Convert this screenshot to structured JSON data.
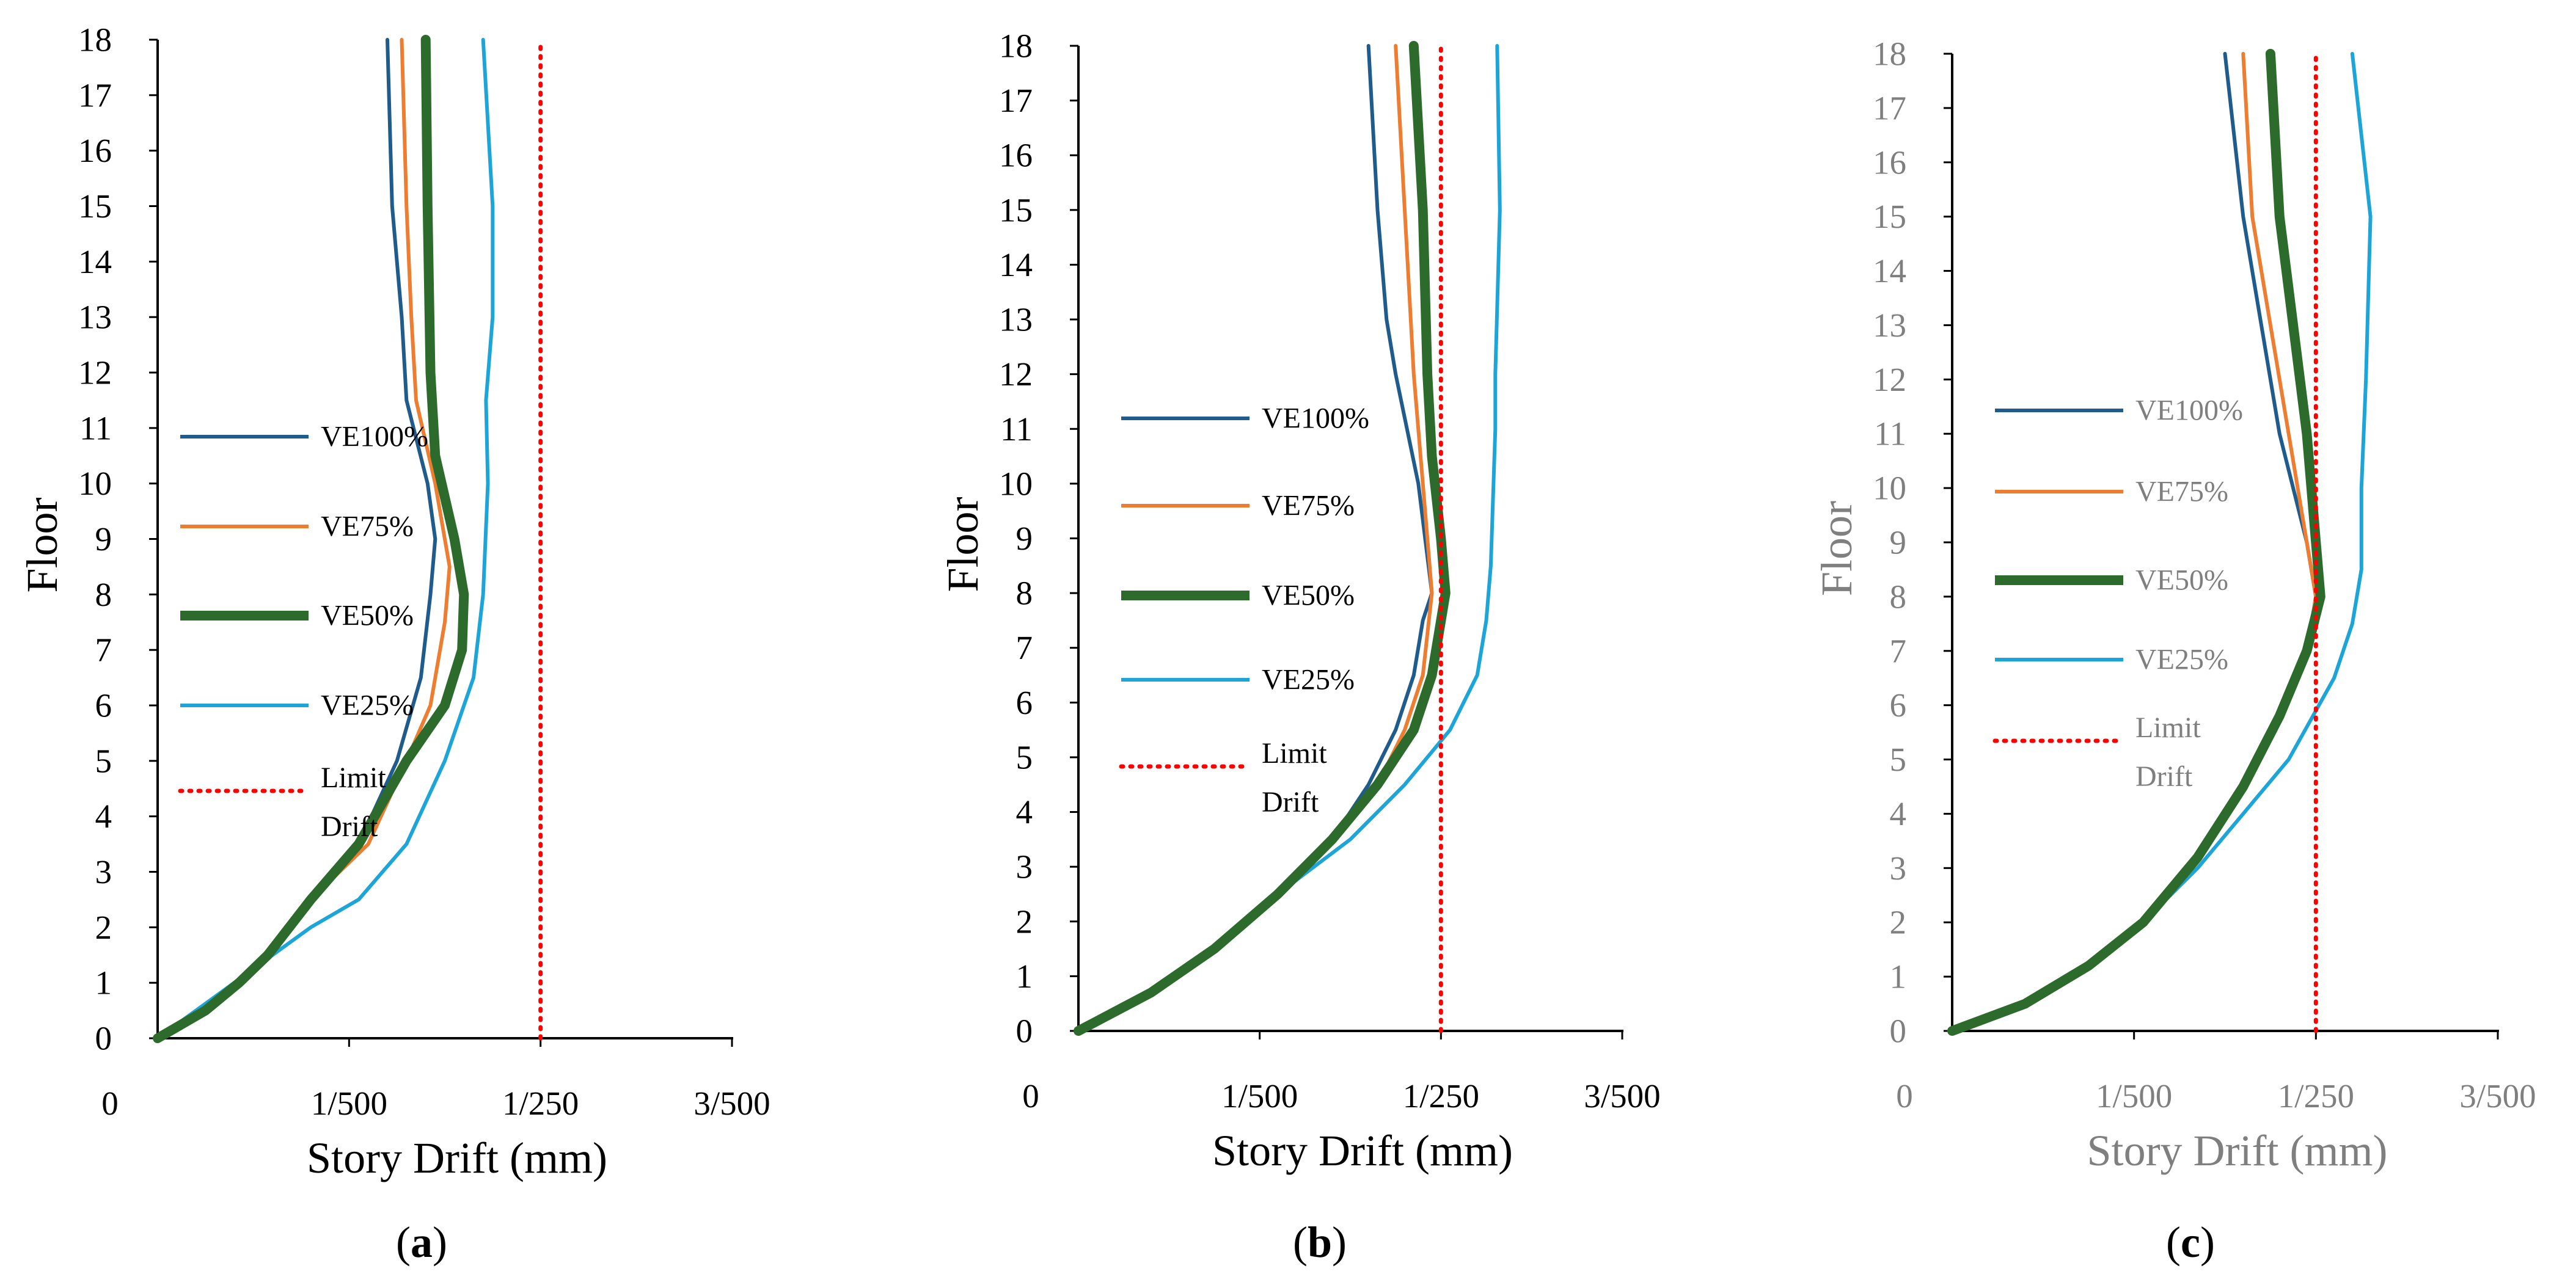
{
  "chart_data": [
    {
      "type": "line",
      "panel": "a",
      "caption": "a",
      "xlabel": "Story Drift (mm)",
      "ylabel": "Floor",
      "x_origin_label": "0",
      "xlim": [
        0,
        0.006
      ],
      "x_ticks": [
        0.002,
        0.004,
        0.006
      ],
      "x_tick_labels": [
        "1/500",
        "1/250",
        "3/500"
      ],
      "ylim": [
        0,
        18
      ],
      "y_ticks": [
        0,
        1,
        2,
        3,
        4,
        5,
        6,
        7,
        8,
        9,
        10,
        11,
        12,
        13,
        14,
        15,
        16,
        17,
        18
      ],
      "y_tick_labels": [
        "0",
        "1",
        "2",
        "3",
        "4",
        "5",
        "6",
        "7",
        "8",
        "9",
        "10",
        "11",
        "12",
        "13",
        "14",
        "15",
        "16",
        "17",
        "18"
      ],
      "legend_position": "left",
      "series": [
        {
          "name": "VE100%",
          "color": "#1f5c8c",
          "width": 6,
          "x": [
            0,
            0.0005,
            0.00085,
            0.00115,
            0.0016,
            0.0021,
            0.0025,
            0.00275,
            0.00285,
            0.0029,
            0.00282,
            0.0026,
            0.00255,
            0.00245,
            0.0024
          ],
          "y": [
            0,
            0.5,
            1,
            1.5,
            2.5,
            3.5,
            5,
            6.5,
            8,
            9,
            10,
            11.5,
            13,
            15,
            18
          ]
        },
        {
          "name": "VE75%",
          "color": "#ed7d31",
          "width": 6,
          "x": [
            0,
            0.0005,
            0.00085,
            0.00115,
            0.0016,
            0.0022,
            0.0026,
            0.00285,
            0.003,
            0.00305,
            0.0029,
            0.0027,
            0.00265,
            0.0026,
            0.00255
          ],
          "y": [
            0,
            0.5,
            1,
            1.5,
            2.5,
            3.5,
            5,
            6,
            7.5,
            8.5,
            10,
            11.5,
            13,
            15,
            18
          ]
        },
        {
          "name": "VE50%",
          "color": "#2d6b2d",
          "width": 16,
          "x": [
            0,
            0.0005,
            0.00085,
            0.00115,
            0.0016,
            0.0021,
            0.0026,
            0.003,
            0.00318,
            0.0032,
            0.0031,
            0.0029,
            0.00285,
            0.00282,
            0.0028
          ],
          "y": [
            0,
            0.5,
            1,
            1.5,
            2.5,
            3.5,
            5,
            6,
            7,
            8,
            9,
            10.5,
            12,
            15,
            18
          ]
        },
        {
          "name": "VE25%",
          "color": "#1ea5d8",
          "width": 6,
          "x": [
            0,
            0.0004,
            0.0008,
            0.0012,
            0.0016,
            0.0021,
            0.0026,
            0.003,
            0.0033,
            0.0034,
            0.00345,
            0.00343,
            0.0035,
            0.0035,
            0.0034
          ],
          "y": [
            0,
            0.5,
            1,
            1.5,
            2,
            2.5,
            3.5,
            5,
            6.5,
            8,
            10,
            11.5,
            13,
            15,
            18
          ]
        },
        {
          "name": "Limit Drift",
          "color": "#ff0000",
          "width": 6,
          "style": "dotted",
          "x": [
            0.004,
            0.004
          ],
          "y": [
            0,
            18
          ]
        }
      ]
    },
    {
      "type": "line",
      "panel": "b",
      "caption": "b",
      "xlabel": "Story Drift (mm)",
      "ylabel": "Floor",
      "x_origin_label": "0",
      "xlim": [
        0,
        0.006
      ],
      "x_ticks": [
        0.002,
        0.004,
        0.006
      ],
      "x_tick_labels": [
        "1/500",
        "1/250",
        "3/500"
      ],
      "ylim": [
        0,
        18
      ],
      "y_ticks": [
        0,
        1,
        2,
        3,
        4,
        5,
        6,
        7,
        8,
        9,
        10,
        11,
        12,
        13,
        14,
        15,
        16,
        17,
        18
      ],
      "y_tick_labels": [
        "0",
        "1",
        "2",
        "3",
        "4",
        "5",
        "6",
        "7",
        "8",
        "9",
        "10",
        "11",
        "12",
        "13",
        "14",
        "15",
        "16",
        "17",
        "18"
      ],
      "legend_position": "left",
      "series": [
        {
          "name": "VE100%",
          "color": "#1f5c8c",
          "width": 6,
          "x": [
            0,
            0.0008,
            0.0015,
            0.0022,
            0.0028,
            0.0032,
            0.0035,
            0.0037,
            0.0038,
            0.0039,
            0.00375,
            0.0035,
            0.0034,
            0.0033,
            0.0032
          ],
          "y": [
            0,
            0.7,
            1.5,
            2.5,
            3.5,
            4.5,
            5.5,
            6.5,
            7.5,
            8,
            10,
            12,
            13,
            15,
            18
          ]
        },
        {
          "name": "VE75%",
          "color": "#ed7d31",
          "width": 6,
          "x": [
            0,
            0.0008,
            0.0015,
            0.0022,
            0.0028,
            0.0033,
            0.0036,
            0.0038,
            0.0039,
            0.0038,
            0.0037,
            0.0036,
            0.0035
          ],
          "y": [
            0,
            0.7,
            1.5,
            2.5,
            3.5,
            4.5,
            5.5,
            6.5,
            8,
            10,
            12,
            15,
            18
          ]
        },
        {
          "name": "VE50%",
          "color": "#2d6b2d",
          "width": 16,
          "x": [
            0,
            0.0008,
            0.0015,
            0.0022,
            0.0028,
            0.0033,
            0.0037,
            0.0039,
            0.00405,
            0.004,
            0.0039,
            0.00385,
            0.0038,
            0.0037
          ],
          "y": [
            0,
            0.7,
            1.5,
            2.5,
            3.5,
            4.5,
            5.5,
            6.5,
            8,
            9,
            10.5,
            12,
            15,
            18
          ]
        },
        {
          "name": "VE25%",
          "color": "#1ea5d8",
          "width": 6,
          "x": [
            0,
            0.0008,
            0.0015,
            0.0022,
            0.003,
            0.0036,
            0.0041,
            0.0044,
            0.0045,
            0.00455,
            0.0046,
            0.0046,
            0.00465,
            0.00462
          ],
          "y": [
            0,
            0.7,
            1.5,
            2.5,
            3.5,
            4.5,
            5.5,
            6.5,
            7.5,
            8.5,
            11,
            12,
            15,
            18
          ]
        },
        {
          "name": "Limit Drift",
          "color": "#ff0000",
          "width": 6,
          "style": "dotted",
          "x": [
            0.004,
            0.004
          ],
          "y": [
            0,
            18
          ]
        }
      ]
    },
    {
      "type": "line",
      "panel": "c",
      "caption": "c",
      "xlabel": "Story Drift (mm)",
      "ylabel": "Floor",
      "x_origin_label": "0",
      "xlim": [
        0,
        0.006
      ],
      "x_ticks": [
        0.002,
        0.004,
        0.006
      ],
      "x_tick_labels": [
        "1/500",
        "1/250",
        "3/500"
      ],
      "ylim": [
        0,
        18
      ],
      "y_ticks": [
        0,
        1,
        2,
        3,
        4,
        5,
        6,
        7,
        8,
        9,
        10,
        11,
        12,
        13,
        14,
        15,
        16,
        17,
        18
      ],
      "y_tick_labels": [
        "0",
        "1",
        "2",
        "3",
        "4",
        "5",
        "6",
        "7",
        "8",
        "9",
        "10",
        "11",
        "12",
        "13",
        "14",
        "15",
        "16",
        "17",
        "18"
      ],
      "legend_position": "left",
      "series": [
        {
          "name": "VE100%",
          "color": "#1f5c8c",
          "width": 6,
          "x": [
            0,
            0.0008,
            0.0015,
            0.0021,
            0.0027,
            0.0032,
            0.0036,
            0.0039,
            0.004,
            0.0039,
            0.0036,
            0.0034,
            0.0032,
            0.003
          ],
          "y": [
            0,
            0.5,
            1.2,
            2,
            3.2,
            4.5,
            5.8,
            7,
            8,
            9,
            11,
            13,
            15,
            18
          ]
        },
        {
          "name": "VE75%",
          "color": "#ed7d31",
          "width": 6,
          "x": [
            0,
            0.0008,
            0.0015,
            0.0021,
            0.0027,
            0.0032,
            0.0036,
            0.0039,
            0.004,
            0.0039,
            0.0037,
            0.0035,
            0.0033,
            0.0032
          ],
          "y": [
            0,
            0.5,
            1.2,
            2,
            3.2,
            4.5,
            5.8,
            7,
            8,
            9,
            11,
            13,
            15,
            18
          ]
        },
        {
          "name": "VE50%",
          "color": "#2d6b2d",
          "width": 16,
          "x": [
            0,
            0.0008,
            0.0015,
            0.0021,
            0.0027,
            0.0032,
            0.0036,
            0.0039,
            0.00405,
            0.004,
            0.0039,
            0.00375,
            0.0036,
            0.0035
          ],
          "y": [
            0,
            0.5,
            1.2,
            2,
            3.2,
            4.5,
            5.8,
            7,
            8,
            9,
            11,
            13,
            15,
            18
          ]
        },
        {
          "name": "VE25%",
          "color": "#1ea5d8",
          "width": 6,
          "x": [
            0,
            0.0008,
            0.0015,
            0.0021,
            0.0027,
            0.0032,
            0.0037,
            0.0042,
            0.0044,
            0.0045,
            0.0045,
            0.00455,
            0.0046,
            0.0044
          ],
          "y": [
            0,
            0.5,
            1.2,
            2,
            3,
            4,
            5,
            6.5,
            7.5,
            8.5,
            10,
            12,
            15,
            18
          ]
        },
        {
          "name": "Limit Drift",
          "color": "#ff0000",
          "width": 6,
          "style": "dotted",
          "x": [
            0.004,
            0.004
          ],
          "y": [
            0,
            18
          ]
        }
      ]
    }
  ]
}
